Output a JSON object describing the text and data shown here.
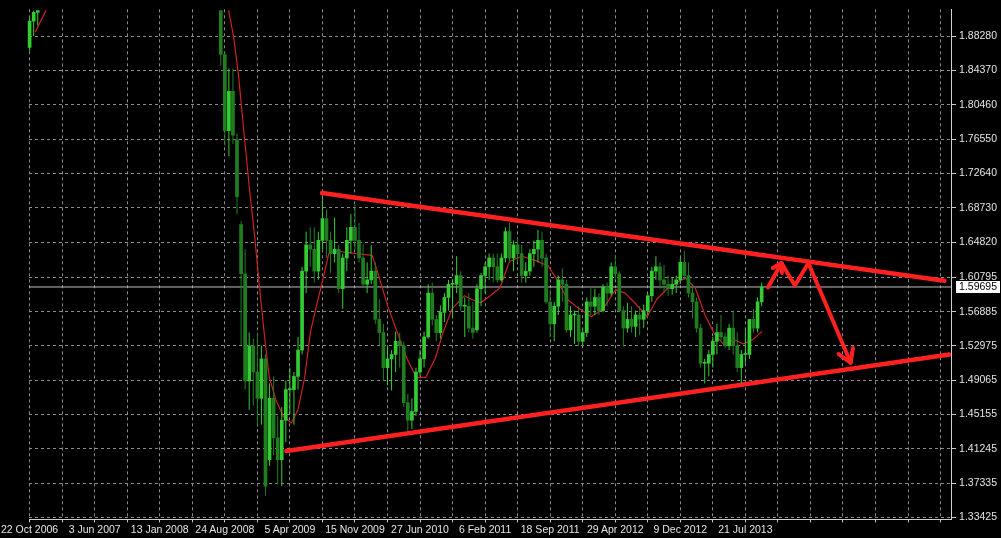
{
  "chart_data": {
    "type": "candlestick",
    "xlim": [
      "2006-10-20",
      "2015-06-29"
    ],
    "xticks": [
      {
        "value": "2006-10-22",
        "label": "22 Oct 2006"
      },
      {
        "value": "2007-02-11",
        "label": null
      },
      {
        "value": "2007-06-03",
        "label": "3 Jun 2007"
      },
      {
        "value": "2007-09-23",
        "label": null
      },
      {
        "value": "2008-01-13",
        "label": "13 Jan 2008"
      },
      {
        "value": "2008-05-04",
        "label": null
      },
      {
        "value": "2008-08-24",
        "label": "24 Aug 2008"
      },
      {
        "value": "2008-12-14",
        "label": null
      },
      {
        "value": "2009-04-05",
        "label": "5 Apr 2009"
      },
      {
        "value": "2009-07-26",
        "label": null
      },
      {
        "value": "2009-11-15",
        "label": "15 Nov 2009"
      },
      {
        "value": "2010-03-07",
        "label": null
      },
      {
        "value": "2010-06-27",
        "label": "27 Jun 2010"
      },
      {
        "value": "2010-10-17",
        "label": null
      },
      {
        "value": "2011-02-06",
        "label": "6 Feb 2011"
      },
      {
        "value": "2011-05-29",
        "label": null
      },
      {
        "value": "2011-09-18",
        "label": "18 Sep 2011"
      },
      {
        "value": "2012-01-08",
        "label": null
      },
      {
        "value": "2012-04-29",
        "label": "29 Apr 2012"
      },
      {
        "value": "2012-08-19",
        "label": null
      },
      {
        "value": "2012-12-09",
        "label": "9 Dec 2012"
      },
      {
        "value": "2013-03-31",
        "label": null
      },
      {
        "value": "2013-07-21",
        "label": "21 Jul 2013"
      },
      {
        "value": "2013-11-10",
        "label": null
      },
      {
        "value": "2014-03-02",
        "label": null
      },
      {
        "value": "2014-06-22",
        "label": null
      },
      {
        "value": "2014-10-12",
        "label": null
      },
      {
        "value": "2015-02-01",
        "label": null
      },
      {
        "value": "2015-05-24",
        "label": null
      }
    ],
    "ylim": [
      1.332,
      1.9135
    ],
    "yticks": [
      1.33425,
      1.37335,
      1.41245,
      1.45155,
      1.49065,
      1.52975,
      1.56885,
      1.60795,
      {
        "value": 1.6482,
        "label": "1.64820"
      },
      {
        "value": 1.6873,
        "label": "1.68730"
      },
      {
        "value": 1.7264,
        "label": "1.72640"
      },
      {
        "value": 1.7655,
        "label": "1.76550"
      },
      {
        "value": 1.8046,
        "label": "1.80460"
      },
      {
        "value": 1.8437,
        "label": "1.84370"
      },
      {
        "value": 1.8828,
        "label": "1.88280"
      }
    ],
    "grid": true,
    "marker": "none",
    "ref_lines": [
      {
        "axis": "y",
        "value": 1.59695,
        "label": "1.59695",
        "color": "#c0c0c0"
      }
    ],
    "series": [
      {
        "type": "candlestick",
        "x": [
          "2006-10-22",
          "2006-11-05",
          "2006-11-19",
          "2008-08-10",
          "2008-08-24",
          "2008-09-07",
          "2008-09-21",
          "2008-10-05",
          "2008-10-19",
          "2008-11-02",
          "2008-11-16",
          "2008-11-30",
          "2008-12-14",
          "2008-12-28",
          "2009-01-11",
          "2009-01-25",
          "2009-02-08",
          "2009-02-22",
          "2009-03-08",
          "2009-03-22",
          "2009-04-05",
          "2009-04-19",
          "2009-05-03",
          "2009-05-17",
          "2009-05-31",
          "2009-06-14",
          "2009-06-28",
          "2009-07-12",
          "2009-07-26",
          "2009-08-09",
          "2009-08-23",
          "2009-09-06",
          "2009-09-20",
          "2009-10-04",
          "2009-10-18",
          "2009-11-01",
          "2009-11-15",
          "2009-11-29",
          "2009-12-13",
          "2009-12-27",
          "2010-01-10",
          "2010-01-24",
          "2010-02-07",
          "2010-02-21",
          "2010-03-07",
          "2010-03-21",
          "2010-04-04",
          "2010-04-18",
          "2010-05-02",
          "2010-05-16",
          "2010-05-30",
          "2010-06-13",
          "2010-06-27",
          "2010-07-11",
          "2010-07-25",
          "2010-08-08",
          "2010-08-22",
          "2010-09-05",
          "2010-09-19",
          "2010-10-03",
          "2010-10-17",
          "2010-10-31",
          "2010-11-14",
          "2010-11-28",
          "2010-12-12",
          "2010-12-26",
          "2011-01-09",
          "2011-01-23",
          "2011-02-06",
          "2011-02-20",
          "2011-03-06",
          "2011-03-20",
          "2011-04-03",
          "2011-04-17",
          "2011-05-01",
          "2011-05-15",
          "2011-05-29",
          "2011-06-12",
          "2011-06-26",
          "2011-07-10",
          "2011-07-24",
          "2011-08-07",
          "2011-08-21",
          "2011-09-04",
          "2011-09-18",
          "2011-10-02",
          "2011-10-16",
          "2011-10-30",
          "2011-11-13",
          "2011-11-27",
          "2011-12-11",
          "2011-12-25",
          "2012-01-08",
          "2012-01-22",
          "2012-02-05",
          "2012-02-19",
          "2012-03-04",
          "2012-03-18",
          "2012-04-01",
          "2012-04-15",
          "2012-04-29",
          "2012-05-13",
          "2012-05-27",
          "2012-06-10",
          "2012-06-24",
          "2012-07-08",
          "2012-07-22",
          "2012-08-05",
          "2012-08-19",
          "2012-09-02",
          "2012-09-16",
          "2012-09-30",
          "2012-10-14",
          "2012-10-28",
          "2012-11-11",
          "2012-11-25",
          "2012-12-09",
          "2012-12-23",
          "2013-01-06",
          "2013-01-20",
          "2013-02-03",
          "2013-02-17",
          "2013-03-03",
          "2013-03-17",
          "2013-03-31",
          "2013-04-14",
          "2013-04-28",
          "2013-05-12",
          "2013-05-26",
          "2013-06-09",
          "2013-06-23",
          "2013-07-07",
          "2013-07-21",
          "2013-08-04",
          "2013-08-18",
          "2013-09-01",
          "2013-09-15"
        ],
        "ohlc": [
          [
            1.87,
            1.905,
            1.866,
            1.9
          ],
          [
            1.9,
            1.912,
            1.883,
            1.91
          ],
          [
            1.91,
            1.912,
            1.895,
            1.912
          ],
          [
            1.912,
            1.912,
            1.849,
            1.862
          ],
          [
            1.862,
            1.866,
            1.758,
            1.775
          ],
          [
            1.775,
            1.846,
            1.746,
            1.82
          ],
          [
            1.82,
            1.846,
            1.76,
            1.77
          ],
          [
            1.765,
            1.772,
            1.68,
            1.7
          ],
          [
            1.668,
            1.672,
            1.531,
            1.612
          ],
          [
            1.612,
            1.64,
            1.48,
            1.49
          ],
          [
            1.49,
            1.545,
            1.457,
            1.53
          ],
          [
            1.53,
            1.538,
            1.462,
            1.5
          ],
          [
            1.5,
            1.545,
            1.44,
            1.47
          ],
          [
            1.47,
            1.53,
            1.44,
            1.515
          ],
          [
            1.515,
            1.52,
            1.359,
            1.37
          ],
          [
            1.4,
            1.487,
            1.393,
            1.47
          ],
          [
            1.47,
            1.495,
            1.405,
            1.425
          ],
          [
            1.425,
            1.45,
            1.372,
            1.4
          ],
          [
            1.4,
            1.46,
            1.37,
            1.445
          ],
          [
            1.445,
            1.49,
            1.42,
            1.48
          ],
          [
            1.48,
            1.505,
            1.452,
            1.48
          ],
          [
            1.48,
            1.5,
            1.44,
            1.495
          ],
          [
            1.495,
            1.54,
            1.48,
            1.525
          ],
          [
            1.525,
            1.62,
            1.52,
            1.615
          ],
          [
            1.615,
            1.66,
            1.59,
            1.645
          ],
          [
            1.645,
            1.665,
            1.62,
            1.64
          ],
          [
            1.64,
            1.665,
            1.602,
            1.615
          ],
          [
            1.615,
            1.66,
            1.605,
            1.65
          ],
          [
            1.65,
            1.7,
            1.64,
            1.675
          ],
          [
            1.675,
            1.685,
            1.63,
            1.65
          ],
          [
            1.65,
            1.66,
            1.613,
            1.635
          ],
          [
            1.635,
            1.676,
            1.625,
            1.64
          ],
          [
            1.64,
            1.645,
            1.59,
            1.595
          ],
          [
            1.595,
            1.635,
            1.572,
            1.63
          ],
          [
            1.63,
            1.665,
            1.615,
            1.65
          ],
          [
            1.65,
            1.68,
            1.635,
            1.665
          ],
          [
            1.665,
            1.691,
            1.64,
            1.65
          ],
          [
            1.65,
            1.67,
            1.625,
            1.63
          ],
          [
            1.63,
            1.646,
            1.598,
            1.6
          ],
          [
            1.6,
            1.625,
            1.59,
            1.605
          ],
          [
            1.605,
            1.645,
            1.6,
            1.615
          ],
          [
            1.615,
            1.625,
            1.555,
            1.56
          ],
          [
            1.56,
            1.583,
            1.53,
            1.545
          ],
          [
            1.545,
            1.555,
            1.49,
            1.505
          ],
          [
            1.505,
            1.53,
            1.485,
            1.515
          ],
          [
            1.515,
            1.525,
            1.479,
            1.52
          ],
          [
            1.52,
            1.546,
            1.5,
            1.535
          ],
          [
            1.535,
            1.545,
            1.505,
            1.53
          ],
          [
            1.53,
            1.535,
            1.46,
            1.465
          ],
          [
            1.465,
            1.475,
            1.432,
            1.445
          ],
          [
            1.445,
            1.47,
            1.435,
            1.455
          ],
          [
            1.455,
            1.505,
            1.45,
            1.5
          ],
          [
            1.5,
            1.525,
            1.495,
            1.515
          ],
          [
            1.515,
            1.546,
            1.505,
            1.54
          ],
          [
            1.54,
            1.6,
            1.538,
            1.59
          ],
          [
            1.59,
            1.602,
            1.553,
            1.56
          ],
          [
            1.56,
            1.565,
            1.535,
            1.545
          ],
          [
            1.545,
            1.576,
            1.538,
            1.568
          ],
          [
            1.568,
            1.59,
            1.557,
            1.585
          ],
          [
            1.585,
            1.605,
            1.57,
            1.6
          ],
          [
            1.6,
            1.605,
            1.562,
            1.6
          ],
          [
            1.6,
            1.632,
            1.59,
            1.61
          ],
          [
            1.61,
            1.615,
            1.57,
            1.575
          ],
          [
            1.575,
            1.585,
            1.54,
            1.575
          ],
          [
            1.575,
            1.59,
            1.545,
            1.55
          ],
          [
            1.55,
            1.58,
            1.538,
            1.545
          ],
          [
            1.548,
            1.6,
            1.545,
            1.595
          ],
          [
            1.595,
            1.613,
            1.575,
            1.61
          ],
          [
            1.61,
            1.625,
            1.59,
            1.62
          ],
          [
            1.62,
            1.635,
            1.605,
            1.63
          ],
          [
            1.63,
            1.635,
            1.602,
            1.62
          ],
          [
            1.62,
            1.635,
            1.602,
            1.605
          ],
          [
            1.605,
            1.635,
            1.603,
            1.63
          ],
          [
            1.63,
            1.665,
            1.625,
            1.66
          ],
          [
            1.66,
            1.67,
            1.625,
            1.63
          ],
          [
            1.63,
            1.65,
            1.615,
            1.645
          ],
          [
            1.645,
            1.653,
            1.625,
            1.635
          ],
          [
            1.635,
            1.645,
            1.602,
            1.61
          ],
          [
            1.61,
            1.625,
            1.602,
            1.615
          ],
          [
            1.615,
            1.64,
            1.61,
            1.635
          ],
          [
            1.635,
            1.65,
            1.62,
            1.64
          ],
          [
            1.64,
            1.662,
            1.625,
            1.65
          ],
          [
            1.65,
            1.66,
            1.62,
            1.63
          ],
          [
            1.63,
            1.635,
            1.578,
            1.58
          ],
          [
            1.58,
            1.594,
            1.54,
            1.555
          ],
          [
            1.555,
            1.58,
            1.535,
            1.575
          ],
          [
            1.575,
            1.61,
            1.565,
            1.605
          ],
          [
            1.605,
            1.618,
            1.58,
            1.6
          ],
          [
            1.6,
            1.605,
            1.545,
            1.548
          ],
          [
            1.548,
            1.575,
            1.54,
            1.565
          ],
          [
            1.565,
            1.57,
            1.532,
            1.565
          ],
          [
            1.565,
            1.575,
            1.53,
            1.535
          ],
          [
            1.535,
            1.55,
            1.529,
            1.545
          ],
          [
            1.545,
            1.585,
            1.54,
            1.58
          ],
          [
            1.58,
            1.598,
            1.565,
            1.575
          ],
          [
            1.575,
            1.595,
            1.565,
            1.585
          ],
          [
            1.585,
            1.59,
            1.565,
            1.57
          ],
          [
            1.57,
            1.6,
            1.568,
            1.597
          ],
          [
            1.597,
            1.602,
            1.575,
            1.59
          ],
          [
            1.59,
            1.625,
            1.587,
            1.62
          ],
          [
            1.62,
            1.633,
            1.605,
            1.612
          ],
          [
            1.612,
            1.615,
            1.568,
            1.57
          ],
          [
            1.57,
            1.575,
            1.529,
            1.55
          ],
          [
            1.55,
            1.579,
            1.545,
            1.56
          ],
          [
            1.56,
            1.575,
            1.545,
            1.552
          ],
          [
            1.552,
            1.57,
            1.54,
            1.565
          ],
          [
            1.565,
            1.575,
            1.542,
            1.56
          ],
          [
            1.56,
            1.577,
            1.55,
            1.57
          ],
          [
            1.57,
            1.59,
            1.565,
            1.587
          ],
          [
            1.587,
            1.62,
            1.58,
            1.615
          ],
          [
            1.615,
            1.632,
            1.605,
            1.62
          ],
          [
            1.62,
            1.625,
            1.595,
            1.605
          ],
          [
            1.605,
            1.622,
            1.59,
            1.6
          ],
          [
            1.6,
            1.61,
            1.587,
            1.595
          ],
          [
            1.595,
            1.608,
            1.588,
            1.6
          ],
          [
            1.6,
            1.61,
            1.59,
            1.605
          ],
          [
            1.605,
            1.63,
            1.6,
            1.625
          ],
          [
            1.625,
            1.638,
            1.605,
            1.61
          ],
          [
            1.61,
            1.625,
            1.585,
            1.59
          ],
          [
            1.59,
            1.6,
            1.561,
            1.58
          ],
          [
            1.58,
            1.585,
            1.545,
            1.55
          ],
          [
            1.55,
            1.555,
            1.505,
            1.51
          ],
          [
            1.51,
            1.515,
            1.487,
            1.51
          ],
          [
            1.51,
            1.525,
            1.495,
            1.52
          ],
          [
            1.52,
            1.54,
            1.505,
            1.535
          ],
          [
            1.535,
            1.555,
            1.52,
            1.545
          ],
          [
            1.545,
            1.565,
            1.535,
            1.54
          ],
          [
            1.54,
            1.545,
            1.527,
            1.53
          ],
          [
            1.53,
            1.555,
            1.525,
            1.55
          ],
          [
            1.55,
            1.57,
            1.52,
            1.53
          ],
          [
            1.53,
            1.545,
            1.5,
            1.505
          ],
          [
            1.505,
            1.525,
            1.487,
            1.52
          ],
          [
            1.52,
            1.55,
            1.51,
            1.52
          ],
          [
            1.52,
            1.56,
            1.515,
            1.56
          ],
          [
            1.56,
            1.572,
            1.545,
            1.55
          ],
          [
            1.55,
            1.585,
            1.545,
            1.58
          ],
          [
            1.58,
            1.602,
            1.575,
            1.597
          ]
        ],
        "colors": [
          "#33cc33",
          "#33cc33",
          "#33cc33",
          "#207e20",
          "#207e20",
          "#33cc33",
          "#207e20",
          "#207e20",
          "#207e20",
          "#207e20",
          "#33cc33",
          "#207e20",
          "#207e20",
          "#33cc33",
          "#207e20",
          "#33cc33",
          "#207e20",
          "#207e20",
          "#33cc33",
          "#33cc33",
          "#33cc33",
          "#33cc33",
          "#33cc33",
          "#33cc33",
          "#33cc33",
          "#207e20",
          "#207e20",
          "#33cc33",
          "#33cc33",
          "#207e20",
          "#207e20",
          "#33cc33",
          "#207e20",
          "#33cc33",
          "#33cc33",
          "#33cc33",
          "#207e20",
          "#207e20",
          "#207e20",
          "#33cc33",
          "#33cc33",
          "#207e20",
          "#207e20",
          "#207e20",
          "#33cc33",
          "#33cc33",
          "#33cc33",
          "#207e20",
          "#207e20",
          "#207e20",
          "#33cc33",
          "#33cc33",
          "#33cc33",
          "#33cc33",
          "#33cc33",
          "#207e20",
          "#207e20",
          "#33cc33",
          "#33cc33",
          "#33cc33",
          "#33cc33",
          "#33cc33",
          "#207e20",
          "#33cc33",
          "#207e20",
          "#207e20",
          "#33cc33",
          "#33cc33",
          "#33cc33",
          "#33cc33",
          "#207e20",
          "#207e20",
          "#33cc33",
          "#33cc33",
          "#207e20",
          "#33cc33",
          "#207e20",
          "#207e20",
          "#33cc33",
          "#33cc33",
          "#33cc33",
          "#33cc33",
          "#207e20",
          "#207e20",
          "#207e20",
          "#33cc33",
          "#33cc33",
          "#207e20",
          "#207e20",
          "#33cc33",
          "#33cc33",
          "#207e20",
          "#33cc33",
          "#33cc33",
          "#207e20",
          "#33cc33",
          "#207e20",
          "#33cc33",
          "#207e20",
          "#33cc33",
          "#207e20",
          "#207e20",
          "#207e20",
          "#33cc33",
          "#207e20",
          "#33cc33",
          "#207e20",
          "#33cc33",
          "#33cc33",
          "#33cc33",
          "#33cc33",
          "#207e20",
          "#207e20",
          "#207e20",
          "#33cc33",
          "#33cc33",
          "#33cc33",
          "#207e20",
          "#207e20",
          "#207e20",
          "#207e20",
          "#207e20",
          "#33cc33",
          "#33cc33",
          "#33cc33",
          "#33cc33",
          "#207e20",
          "#207e20",
          "#33cc33",
          "#207e20",
          "#207e20",
          "#33cc33",
          "#33cc33",
          "#33cc33",
          "#207e20",
          "#33cc33",
          "#33cc33"
        ]
      },
      {
        "type": "line",
        "color": "#cc2222",
        "x": [
          "2006-11-11",
          "2006-12-17",
          "2007-06-01",
          "2008-09-06",
          "2008-09-23",
          "2008-10-10",
          "2008-10-26",
          "2008-11-18",
          "2008-12-05",
          "2008-12-21",
          "2009-01-07",
          "2009-01-24",
          "2009-02-16",
          "2009-03-14",
          "2009-04-10",
          "2009-05-03",
          "2009-05-26",
          "2009-06-15",
          "2009-07-08",
          "2009-07-25",
          "2009-08-17",
          "2009-09-12",
          "2009-11-18",
          "2010-01-13",
          "2010-02-02",
          "2010-03-07",
          "2010-04-09",
          "2010-05-12",
          "2010-06-14",
          "2010-07-17",
          "2010-08-19",
          "2010-09-12",
          "2010-10-15",
          "2010-11-27",
          "2010-12-20",
          "2011-01-22",
          "2011-02-24",
          "2011-03-29",
          "2011-05-01",
          "2011-06-13",
          "2011-07-30",
          "2011-09-11",
          "2011-10-14",
          "2011-11-16",
          "2011-12-19",
          "2012-02-07",
          "2012-03-18",
          "2012-04-30",
          "2012-06-02",
          "2012-07-05",
          "2012-08-17",
          "2012-09-19",
          "2012-10-22",
          "2012-12-07",
          "2012-12-27",
          "2013-01-29",
          "2013-03-04",
          "2013-04-06",
          "2013-05-09",
          "2013-06-11",
          "2013-07-14",
          "2013-08-16",
          "2013-09-15"
        ],
        "values": [
          1.888,
          1.912,
          null,
          1.912,
          1.883,
          1.839,
          1.783,
          1.705,
          1.654,
          1.598,
          1.543,
          1.494,
          1.468,
          1.449,
          1.442,
          1.457,
          1.494,
          1.546,
          1.579,
          1.602,
          1.635,
          1.638,
          1.635,
          1.633,
          1.613,
          1.576,
          1.546,
          1.516,
          1.494,
          1.494,
          1.516,
          1.543,
          1.572,
          1.587,
          1.583,
          1.579,
          1.587,
          1.596,
          1.626,
          1.632,
          1.627,
          1.621,
          1.604,
          1.583,
          1.574,
          1.563,
          1.572,
          1.594,
          1.59,
          1.579,
          1.563,
          1.583,
          1.594,
          1.604,
          1.607,
          1.596,
          1.565,
          1.543,
          1.531,
          1.537,
          1.532,
          1.537,
          1.546
        ]
      },
      {
        "type": "line",
        "color": "#ff2020",
        "x": [
          "2009-07-25",
          "2015-06-06"
        ],
        "values": [
          1.704,
          1.604
        ]
      },
      {
        "type": "line",
        "color": "#ff2020",
        "x": [
          "2009-03-24",
          "2015-06-23"
        ],
        "values": [
          1.41,
          1.52
        ]
      }
    ]
  }
}
